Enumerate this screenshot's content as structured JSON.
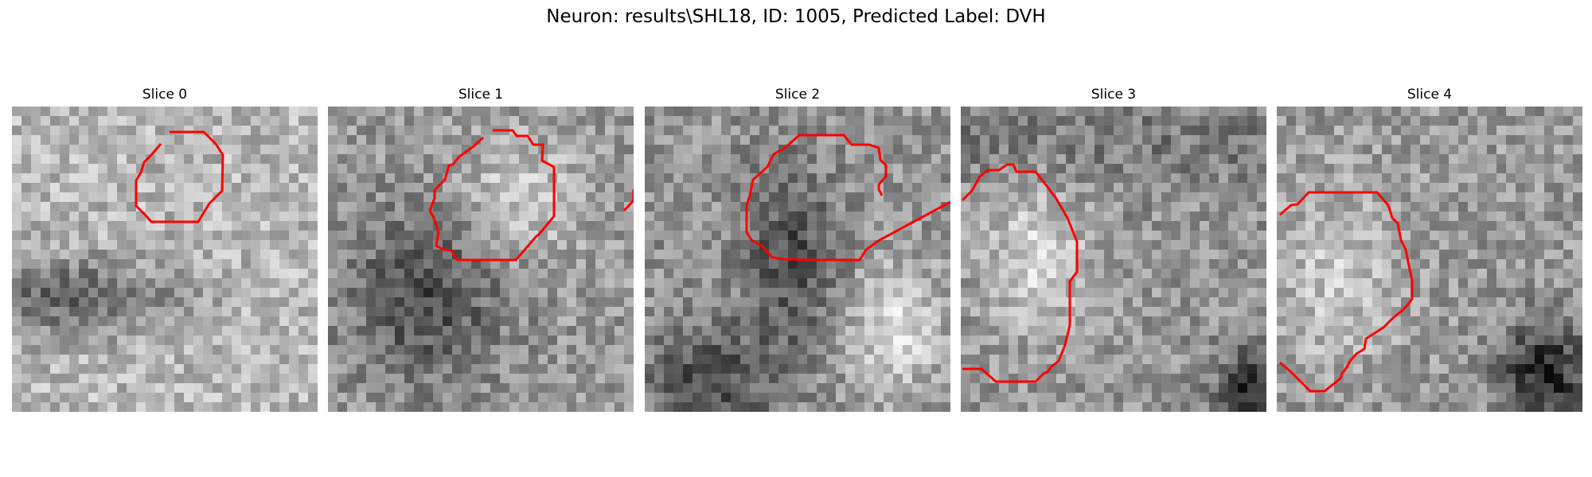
{
  "figure": {
    "title": "Neuron: results\\SHL18, ID: 1005, Predicted Label: DVH"
  },
  "colors": {
    "background": "#ffffff",
    "contour": "#ff0000"
  },
  "slices": [
    {
      "title": "Slice 0",
      "seed": 11,
      "bias": "left-dark-band"
    },
    {
      "title": "Slice 1",
      "seed": 23,
      "bias": "center-left-dark"
    },
    {
      "title": "Slice 2",
      "seed": 37,
      "bias": "center-dark-lower-left"
    },
    {
      "title": "Slice 3",
      "seed": 51,
      "bias": "mid-light-bottom-right-dark"
    },
    {
      "title": "Slice 4",
      "seed": 67,
      "bias": "light-left-bottom-right-dark"
    }
  ]
}
